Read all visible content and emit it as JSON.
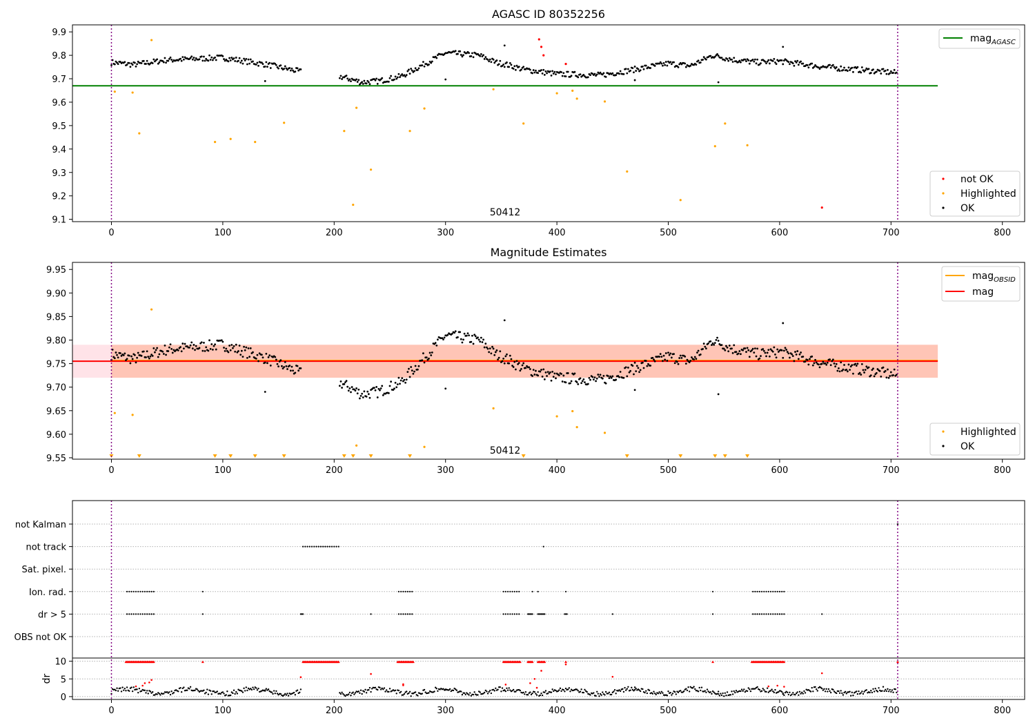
{
  "chart_data": [
    {
      "type": "scatter",
      "title": "AGASC ID 80352256",
      "xlim": [
        -35,
        820
      ],
      "ylim": [
        9.09,
        9.93
      ],
      "xticks": [
        0,
        100,
        200,
        300,
        400,
        500,
        600,
        700,
        800
      ],
      "yticks": [
        9.1,
        9.2,
        9.3,
        9.4,
        9.5,
        9.6,
        9.7,
        9.8,
        9.9
      ],
      "vlines": [
        0,
        706
      ],
      "hline": {
        "y": 9.67,
        "x_range": [
          -35,
          742
        ],
        "color": "#008000"
      },
      "annotation": {
        "text": "50412",
        "x": 352,
        "y": 9.11
      },
      "legend_upper": {
        "position": "upper right",
        "entries": [
          {
            "name": "mag",
            "sub": "AGASC",
            "color": "#008000"
          }
        ]
      },
      "legend_lower": {
        "position": "lower right",
        "entries": [
          {
            "name": "not OK",
            "color": "#ff0000"
          },
          {
            "name": "Highlighted",
            "color": "#ffa500"
          },
          {
            "name": "OK",
            "color": "#000000"
          }
        ]
      },
      "series": [
        {
          "name": "OK",
          "color": "#000000",
          "curve": [
            [
              0,
              9.77
            ],
            [
              20,
              9.76
            ],
            [
              50,
              9.78
            ],
            [
              100,
              9.79
            ],
            [
              140,
              9.76
            ],
            [
              170,
              9.73
            ],
            [
              205,
              9.71
            ],
            [
              225,
              9.685
            ],
            [
              240,
              9.69
            ],
            [
              260,
              9.71
            ],
            [
              280,
              9.76
            ],
            [
              300,
              9.81
            ],
            [
              330,
              9.8
            ],
            [
              345,
              9.77
            ],
            [
              355,
              9.76
            ],
            [
              370,
              9.74
            ],
            [
              400,
              9.72
            ],
            [
              440,
              9.715
            ],
            [
              470,
              9.74
            ],
            [
              500,
              9.765
            ],
            [
              520,
              9.755
            ],
            [
              540,
              9.8
            ],
            [
              560,
              9.78
            ],
            [
              580,
              9.77
            ],
            [
              600,
              9.775
            ],
            [
              640,
              9.75
            ],
            [
              680,
              9.735
            ],
            [
              705,
              9.725
            ]
          ],
          "gap": [
            170,
            205
          ],
          "x_range": [
            0,
            705
          ],
          "step": 1,
          "spread": 0.012,
          "extras": [
            [
              138,
              9.69
            ],
            [
              300,
              9.697
            ],
            [
              353,
              9.842
            ],
            [
              603,
              9.836
            ],
            [
              545,
              9.685
            ],
            [
              470,
              9.694
            ]
          ]
        },
        {
          "name": "Highlighted",
          "color": "#ffa500",
          "points": [
            [
              3,
              9.645
            ],
            [
              19,
              9.641
            ],
            [
              25,
              9.467
            ],
            [
              36,
              9.865
            ],
            [
              93,
              9.43
            ],
            [
              107,
              9.443
            ],
            [
              129,
              9.43
            ],
            [
              155,
              9.512
            ],
            [
              209,
              9.477
            ],
            [
              217,
              9.162
            ],
            [
              220,
              9.576
            ],
            [
              233,
              9.312
            ],
            [
              268,
              9.477
            ],
            [
              281,
              9.573
            ],
            [
              343,
              9.655
            ],
            [
              370,
              9.509
            ],
            [
              400,
              9.638
            ],
            [
              414,
              9.649
            ],
            [
              418,
              9.615
            ],
            [
              443,
              9.603
            ],
            [
              463,
              9.304
            ],
            [
              511,
              9.182
            ],
            [
              542,
              9.412
            ],
            [
              551,
              9.509
            ],
            [
              571,
              9.416
            ]
          ]
        },
        {
          "name": "not OK",
          "color": "#ff0000",
          "points": [
            [
              384,
              9.868
            ],
            [
              386,
              9.836
            ],
            [
              388,
              9.8
            ],
            [
              408,
              9.763
            ],
            [
              638,
              9.15
            ]
          ]
        }
      ]
    },
    {
      "type": "scatter",
      "title": "Magnitude Estimates",
      "xlim": [
        -35,
        820
      ],
      "ylim": [
        9.547,
        9.965
      ],
      "xticks": [
        0,
        100,
        200,
        300,
        400,
        500,
        600,
        700,
        800
      ],
      "yticks": [
        9.55,
        9.6,
        9.65,
        9.7,
        9.75,
        9.8,
        9.85,
        9.9,
        9.95
      ],
      "vlines": [
        0,
        706
      ],
      "annotation": {
        "text": "50412",
        "x": 352,
        "y": 9.557
      },
      "bands": [
        {
          "x_range": [
            -35,
            742
          ],
          "y_range": [
            9.72,
            9.79
          ],
          "color": "#ffc0cb"
        },
        {
          "x_range": [
            0,
            742
          ],
          "y_range": [
            9.72,
            9.79
          ],
          "color": "#ffa07a"
        }
      ],
      "hlines": [
        {
          "name": "mag",
          "sub": "OBSID",
          "y": 9.7565,
          "x_range": [
            0,
            742
          ],
          "color": "#ffa500"
        },
        {
          "name": "mag",
          "y": 9.755,
          "x_range": [
            -35,
            742
          ],
          "color": "#ff0000"
        }
      ],
      "legend_upper": {
        "position": "upper right",
        "entries": [
          {
            "name": "mag",
            "sub": "OBSID",
            "color": "#ffa500"
          },
          {
            "name": "mag",
            "color": "#ff0000"
          }
        ]
      },
      "legend_lower": {
        "position": "lower right",
        "entries": [
          {
            "name": "Highlighted",
            "color": "#ffa500"
          },
          {
            "name": "OK",
            "color": "#000000"
          }
        ]
      },
      "series": [
        {
          "name": "OK",
          "color": "#000000",
          "same_as_panel": 0
        },
        {
          "name": "Highlighted",
          "color": "#ffa500",
          "points": [
            [
              3,
              9.645
            ],
            [
              19,
              9.641
            ],
            [
              36,
              9.865
            ],
            [
              220,
              9.576
            ],
            [
              281,
              9.573
            ],
            [
              343,
              9.655
            ],
            [
              400,
              9.638
            ],
            [
              414,
              9.649
            ],
            [
              418,
              9.615
            ],
            [
              443,
              9.603
            ]
          ]
        },
        {
          "name": "Highlighted (below range)",
          "color": "#ffa500",
          "marker": "triangle-down",
          "x": [
            0,
            25,
            93,
            107,
            129,
            155,
            209,
            217,
            233,
            268,
            370,
            463,
            511,
            542,
            551,
            571
          ]
        }
      ]
    },
    {
      "type": "scatter",
      "xlim": [
        -35,
        820
      ],
      "vlines": [
        0,
        706
      ],
      "flag_rows": [
        "not Kalman",
        "not track",
        "Sat. pixel.",
        "Ion. rad.",
        "dr > 5",
        "OBS not OK"
      ],
      "flags": {
        "not Kalman": [
          [
            706,
            706
          ]
        ],
        "not track": [
          [
            172,
            204
          ],
          [
            388,
            388
          ]
        ],
        "Sat. pixel.": [],
        "Ion. rad.": [
          [
            13,
            38
          ],
          [
            82,
            82
          ],
          [
            257,
            271
          ],
          [
            352,
            367
          ],
          [
            378,
            378
          ],
          [
            383,
            383
          ],
          [
            408,
            408
          ],
          [
            540,
            540
          ],
          [
            575,
            604
          ]
        ],
        "dr > 5": [
          [
            13,
            38
          ],
          [
            82,
            82
          ],
          [
            170,
            172
          ],
          [
            233,
            233
          ],
          [
            257,
            271
          ],
          [
            352,
            367
          ],
          [
            374,
            378
          ],
          [
            383,
            389
          ],
          [
            407,
            409
          ],
          [
            450,
            450
          ],
          [
            540,
            540
          ],
          [
            575,
            604
          ],
          [
            638,
            638
          ]
        ],
        "OBS not OK": []
      },
      "dr_panel": {
        "ylabel": "dr",
        "yticks": [
          0,
          5,
          10
        ],
        "ylim": [
          -0.8,
          10.9
        ],
        "red_segments": [
          [
            13,
            38
          ],
          [
            82,
            82
          ],
          [
            172,
            204
          ],
          [
            257,
            271
          ],
          [
            352,
            367
          ],
          [
            374,
            378
          ],
          [
            383,
            389
          ],
          [
            408,
            408
          ],
          [
            540,
            540
          ],
          [
            575,
            604
          ],
          [
            706,
            706
          ]
        ],
        "red_scatter": [
          [
            170,
            5.5
          ],
          [
            233,
            6.4
          ],
          [
            380,
            5.0
          ],
          [
            386,
            7.3
          ],
          [
            408,
            9.1
          ],
          [
            450,
            5.6
          ],
          [
            638,
            6.6
          ],
          [
            30,
            3.8
          ],
          [
            36,
            4.7
          ],
          [
            262,
            3.5
          ],
          [
            22,
            2.9
          ],
          [
            28,
            3.1
          ],
          [
            34,
            4.0
          ],
          [
            262,
            3.2
          ],
          [
            354,
            3.4
          ],
          [
            376,
            3.8
          ],
          [
            382,
            2.5
          ],
          [
            590,
            2.9
          ],
          [
            598,
            3.1
          ],
          [
            604,
            2.8
          ]
        ]
      }
    }
  ],
  "flag_labels": [
    "not Kalman",
    "not track",
    "Sat. pixel.",
    "Ion. rad.",
    "dr > 5",
    "OBS not OK"
  ]
}
